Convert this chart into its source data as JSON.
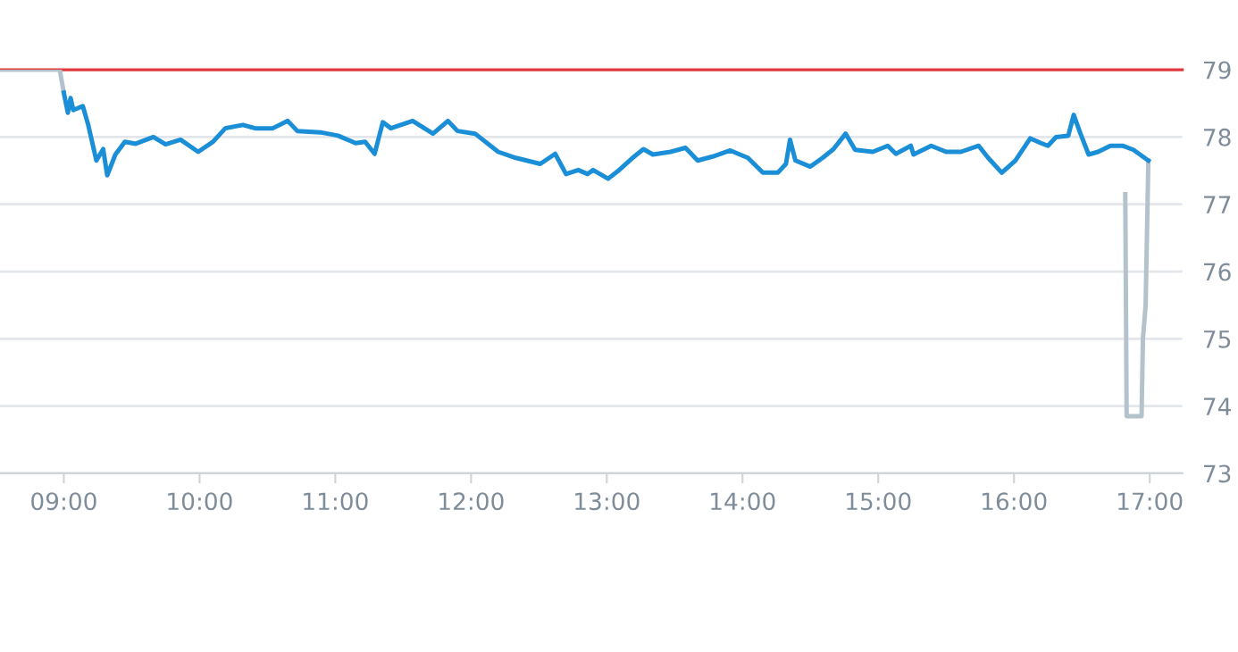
{
  "chart_data": {
    "type": "line",
    "xlim": [
      8.53,
      17.24
    ],
    "ylim": [
      73,
      79
    ],
    "xticks": [
      {
        "value": 9,
        "label": "09:00"
      },
      {
        "value": 10,
        "label": "10:00"
      },
      {
        "value": 11,
        "label": "11:00"
      },
      {
        "value": 12,
        "label": "12:00"
      },
      {
        "value": 13,
        "label": "13:00"
      },
      {
        "value": 14,
        "label": "14:00"
      },
      {
        "value": 15,
        "label": "15:00"
      },
      {
        "value": 16,
        "label": "16:00"
      },
      {
        "value": 17,
        "label": "17:00"
      }
    ],
    "yticks": [
      73,
      74,
      75,
      76,
      77,
      78,
      79
    ],
    "grid": "y",
    "marker": "none",
    "line_style": "solid",
    "ref_lines": [
      {
        "axis": "y",
        "value": 79,
        "color": "#e0393e"
      }
    ],
    "series": [
      {
        "color": "#b4c2cc",
        "x": [
          8.53,
          8.97,
          9.0
        ],
        "values": [
          79.0,
          79.0,
          78.66
        ]
      },
      {
        "color": "#b4c2cc",
        "x": [
          16.82,
          16.83,
          16.94,
          16.95,
          16.97,
          16.99
        ],
        "values": [
          77.15,
          73.85,
          73.85,
          75.0,
          75.5,
          77.65
        ]
      },
      {
        "color": "#1a8fd8",
        "x": [
          9.0,
          9.03,
          9.05,
          9.07,
          9.14,
          9.18,
          9.24,
          9.29,
          9.32,
          9.38,
          9.45,
          9.53,
          9.66,
          9.75,
          9.86,
          9.99,
          10.1,
          10.19,
          10.32,
          10.41,
          10.54,
          10.65,
          10.72,
          10.89,
          11.02,
          11.15,
          11.22,
          11.29,
          11.35,
          11.41,
          11.57,
          11.72,
          11.83,
          11.9,
          12.03,
          12.2,
          12.33,
          12.51,
          12.62,
          12.7,
          12.79,
          12.86,
          12.9,
          13.01,
          13.08,
          13.19,
          13.27,
          13.34,
          13.47,
          13.58,
          13.67,
          13.78,
          13.91,
          14.04,
          14.15,
          14.26,
          14.32,
          14.35,
          14.39,
          14.5,
          14.59,
          14.67,
          14.76,
          14.83,
          14.96,
          15.07,
          15.13,
          15.24,
          15.26,
          15.39,
          15.5,
          15.61,
          15.74,
          15.81,
          15.91,
          16.01,
          16.12,
          16.2,
          16.25,
          16.31,
          16.4,
          16.44,
          16.49,
          16.55,
          16.62,
          16.71,
          16.8,
          16.88,
          16.99
        ],
        "values": [
          78.66,
          78.36,
          78.58,
          78.4,
          78.46,
          78.18,
          77.65,
          77.82,
          77.43,
          77.74,
          77.93,
          77.9,
          78.0,
          77.89,
          77.96,
          77.78,
          77.93,
          78.13,
          78.18,
          78.13,
          78.13,
          78.24,
          78.09,
          78.07,
          78.02,
          77.91,
          77.93,
          77.75,
          78.22,
          78.13,
          78.24,
          78.05,
          78.24,
          78.09,
          78.05,
          77.78,
          77.69,
          77.6,
          77.75,
          77.45,
          77.51,
          77.45,
          77.51,
          77.38,
          77.49,
          77.69,
          77.82,
          77.74,
          77.78,
          77.84,
          77.65,
          77.71,
          77.8,
          77.69,
          77.47,
          77.47,
          77.6,
          77.96,
          77.65,
          77.56,
          77.69,
          77.82,
          78.05,
          77.81,
          77.78,
          77.87,
          77.75,
          77.87,
          77.74,
          77.87,
          77.78,
          77.78,
          77.87,
          77.69,
          77.47,
          77.65,
          77.98,
          77.91,
          77.87,
          78.0,
          78.02,
          78.33,
          78.05,
          77.74,
          77.78,
          77.87,
          77.87,
          77.81,
          77.65
        ]
      }
    ]
  }
}
